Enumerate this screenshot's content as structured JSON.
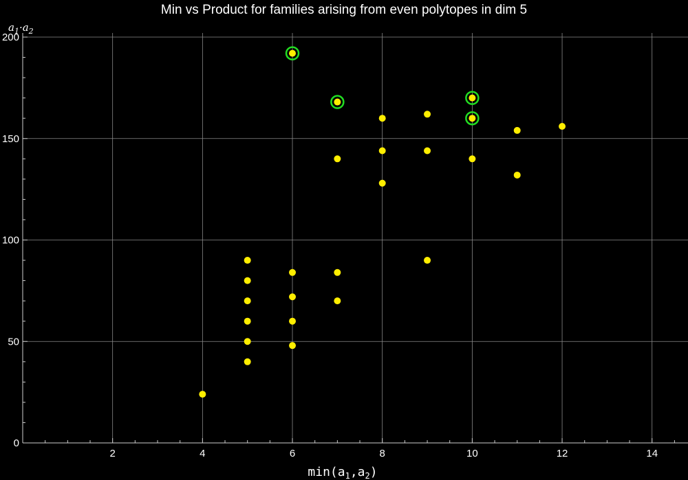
{
  "chart_data": {
    "type": "scatter",
    "title": "Min vs Product for families arising from even polytopes in dim 5",
    "xlabel": "min(a1,a2)",
    "ylabel": "a1·a2",
    "xlim": [
      0,
      14.8
    ],
    "ylim": [
      0,
      200
    ],
    "x_ticks": [
      2,
      4,
      6,
      8,
      10,
      12,
      14
    ],
    "y_ticks": [
      0,
      50,
      100,
      150,
      200
    ],
    "grid": true,
    "point_color": "#ffee00",
    "highlight_color": "#22dd22",
    "points": [
      {
        "x": 4,
        "y": 24
      },
      {
        "x": 5,
        "y": 40
      },
      {
        "x": 5,
        "y": 50
      },
      {
        "x": 5,
        "y": 60
      },
      {
        "x": 5,
        "y": 70
      },
      {
        "x": 5,
        "y": 80
      },
      {
        "x": 5,
        "y": 90
      },
      {
        "x": 6,
        "y": 48
      },
      {
        "x": 6,
        "y": 60
      },
      {
        "x": 6,
        "y": 72
      },
      {
        "x": 6,
        "y": 84
      },
      {
        "x": 6,
        "y": 192,
        "highlight": true
      },
      {
        "x": 7,
        "y": 70
      },
      {
        "x": 7,
        "y": 84
      },
      {
        "x": 7,
        "y": 140
      },
      {
        "x": 7,
        "y": 168,
        "highlight": true
      },
      {
        "x": 8,
        "y": 128
      },
      {
        "x": 8,
        "y": 144
      },
      {
        "x": 8,
        "y": 160
      },
      {
        "x": 9,
        "y": 90
      },
      {
        "x": 9,
        "y": 144
      },
      {
        "x": 9,
        "y": 162
      },
      {
        "x": 10,
        "y": 140
      },
      {
        "x": 10,
        "y": 160,
        "highlight": true
      },
      {
        "x": 10,
        "y": 170,
        "highlight": true
      },
      {
        "x": 11,
        "y": 132
      },
      {
        "x": 11,
        "y": 154
      },
      {
        "x": 12,
        "y": 156
      }
    ]
  }
}
